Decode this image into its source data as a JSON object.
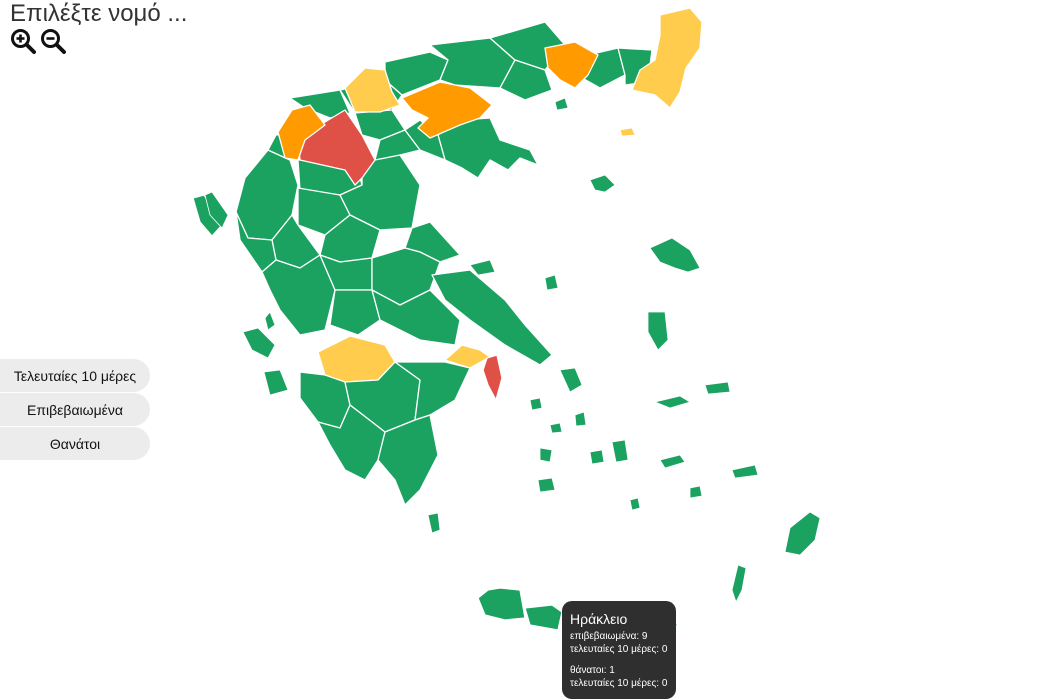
{
  "header": {
    "title": "Επιλέξτε νομό ..."
  },
  "zoom": {
    "in_icon": "zoom-in-icon",
    "out_icon": "zoom-out-icon"
  },
  "metrics": [
    {
      "label": "Τελευταίες 10 μέρες"
    },
    {
      "label": "Επιβεβαιωμένα"
    },
    {
      "label": "Θανάτοι"
    }
  ],
  "legend_colors": {
    "low": "#1ba261",
    "medium": "#ffcc4d",
    "high": "#ff9a00",
    "very_high": "#df5146"
  },
  "tooltip": {
    "region": "Ηράκλειο",
    "confirmed": "επιβεβαιωμένα: 9",
    "confirmed_last10": "τελευταίες 10 μέρες: 0",
    "deaths": "θάνατοι: 1",
    "deaths_last10": "τελευταίες 10 μέρες: 0"
  }
}
